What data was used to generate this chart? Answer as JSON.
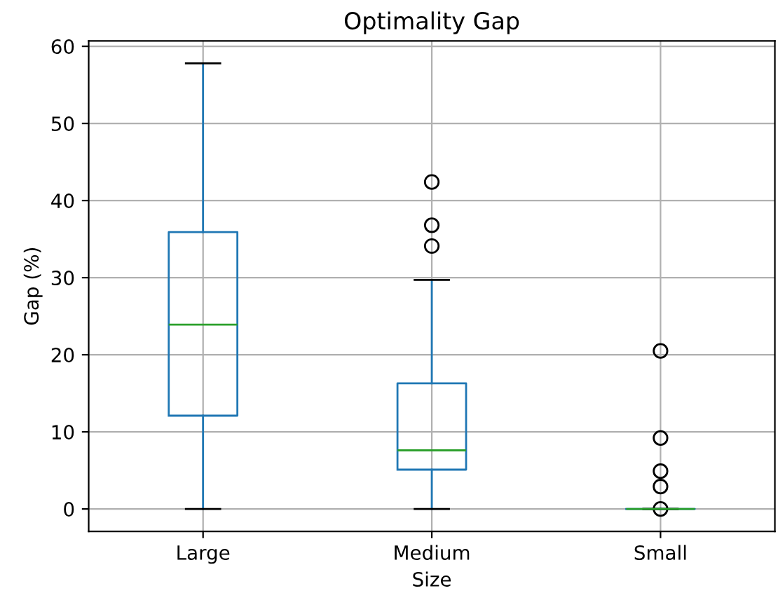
{
  "chart_data": {
    "type": "box",
    "title": "Optimality Gap",
    "xlabel": "Size",
    "ylabel": "Gap (%)",
    "categories": [
      "Large",
      "Medium",
      "Small"
    ],
    "series": [
      {
        "color": "#1f77b4",
        "boxes": [
          {
            "low": 0,
            "q1": 12.1,
            "median": 23.9,
            "q3": 35.9,
            "high": 57.8
          },
          {
            "low": 0,
            "q1": 5.1,
            "median": 7.6,
            "q3": 16.3,
            "high": 29.7,
            "outliers": [
              42.4,
              36.8,
              34.1
            ]
          },
          {
            "low": 0,
            "q1": 0,
            "median": 0,
            "q3": 0,
            "high": 0,
            "outliers": [
              20.5,
              9.2,
              4.9,
              2.9,
              0
            ]
          }
        ]
      }
    ],
    "ylim": [
      -2.9,
      60.7
    ],
    "yticks": [
      0,
      10,
      20,
      30,
      40,
      50,
      60
    ],
    "grid": true,
    "marker": "circle"
  }
}
